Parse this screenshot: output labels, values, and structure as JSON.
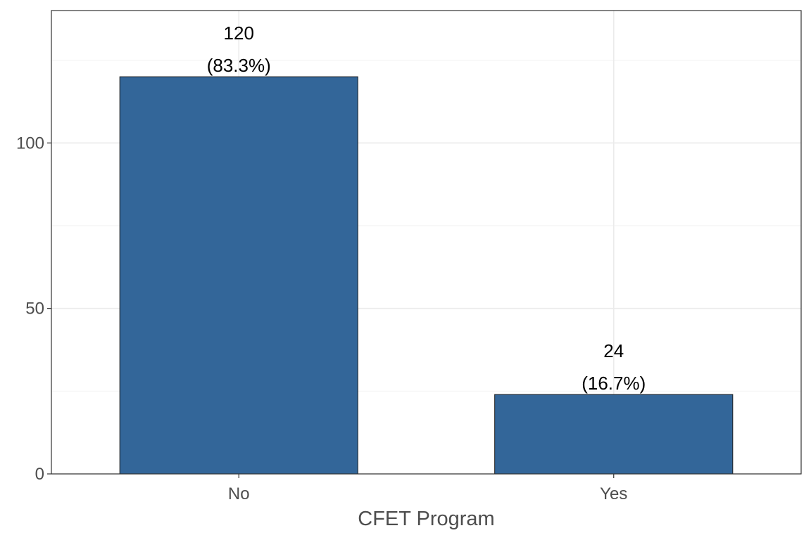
{
  "chart_data": {
    "type": "bar",
    "categories": [
      "No",
      "Yes"
    ],
    "values": [
      120,
      24
    ],
    "data_labels": [
      {
        "count": "120",
        "percent": "(83.3%)"
      },
      {
        "count": "24",
        "percent": "(16.7%)"
      }
    ],
    "title": "",
    "xlabel": "CFET Program",
    "ylabel": "",
    "ylim": [
      0,
      140
    ],
    "yticks": [
      0,
      50,
      100
    ],
    "ytick_labels": [
      "0",
      "50",
      "100"
    ],
    "grid": true,
    "legend": "none",
    "colors": {
      "bar_fill": "#336699",
      "bar_stroke": "#1a1a1a",
      "grid_major": "#ebebeb",
      "grid_minor": "#f4f4f4",
      "panel_border": "#333333"
    }
  }
}
